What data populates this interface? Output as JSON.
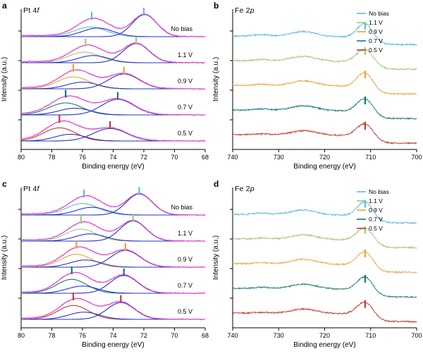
{
  "styles": {
    "background": "#ffffff",
    "axis_color": "#000000",
    "text_color": "#000000",
    "raw_color": "#d934c8",
    "envelope_color": "#f175d8",
    "fit_color": "#2433c9",
    "bias_colors": {
      "no_bias": "#5bbcdc",
      "v11": "#a6c57f",
      "v09": "#eda13c",
      "v07": "#15777c",
      "v05": "#bd3b32"
    }
  },
  "chart_data": [
    {
      "id": "a",
      "panel_letter": "a",
      "type": "line",
      "title": "Pt 4f",
      "title_prefix": "Pt 4",
      "title_italic": "f",
      "xlabel": "Binding energy (eV)",
      "ylabel": "Intensity (a.u.)",
      "x_range": [
        80,
        68
      ],
      "x_ticks": [
        80,
        78,
        76,
        74,
        72,
        70,
        68
      ],
      "spectrum": "pt4f",
      "background_tilt": 0.05,
      "raw_noise": 0.05,
      "series": [
        {
          "name": "No bias",
          "color_key": "no_bias",
          "marker_positions_eV": [
            75.4,
            72.0
          ],
          "fit_components": [
            {
              "center_eV": 75.5,
              "amplitude": 0.4,
              "sigma_eV": 1.05,
              "color": "bias"
            },
            {
              "center_eV": 75.0,
              "amplitude": 0.36,
              "sigma_eV": 1.0,
              "color": "blue"
            },
            {
              "center_eV": 71.95,
              "amplitude": 0.92,
              "sigma_eV": 0.8,
              "color": "blue"
            }
          ]
        },
        {
          "name": "1.1 V",
          "color_key": "v11",
          "marker_positions_eV": [
            75.8,
            72.5
          ],
          "fit_components": [
            {
              "center_eV": 75.9,
              "amplitude": 0.44,
              "sigma_eV": 1.05,
              "color": "bias"
            },
            {
              "center_eV": 75.3,
              "amplitude": 0.3,
              "sigma_eV": 1.0,
              "color": "blue"
            },
            {
              "center_eV": 72.5,
              "amplitude": 0.8,
              "sigma_eV": 0.85,
              "color": "blue"
            }
          ]
        },
        {
          "name": "0.9 V",
          "color_key": "v09",
          "marker_positions_eV": [
            76.6,
            73.3
          ],
          "fit_components": [
            {
              "center_eV": 76.6,
              "amplitude": 0.5,
              "sigma_eV": 1.05,
              "color": "bias"
            },
            {
              "center_eV": 76.0,
              "amplitude": 0.28,
              "sigma_eV": 1.0,
              "color": "blue"
            },
            {
              "center_eV": 73.3,
              "amplitude": 0.62,
              "sigma_eV": 1.0,
              "color": "blue"
            }
          ]
        },
        {
          "name": "0.7 V",
          "color_key": "v07",
          "marker_positions_eV": [
            77.1,
            73.7
          ],
          "fit_components": [
            {
              "center_eV": 77.1,
              "amplitude": 0.5,
              "sigma_eV": 1.1,
              "color": "bias"
            },
            {
              "center_eV": 76.5,
              "amplitude": 0.28,
              "sigma_eV": 1.05,
              "color": "blue"
            },
            {
              "center_eV": 73.7,
              "amplitude": 0.65,
              "sigma_eV": 1.05,
              "color": "blue"
            }
          ]
        },
        {
          "name": "0.5 V",
          "color_key": "v05",
          "marker_positions_eV": [
            77.5,
            74.2
          ],
          "fit_components": [
            {
              "center_eV": 77.5,
              "amplitude": 0.55,
              "sigma_eV": 1.05,
              "color": "bias"
            },
            {
              "center_eV": 76.8,
              "amplitude": 0.28,
              "sigma_eV": 1.0,
              "color": "blue"
            },
            {
              "center_eV": 74.2,
              "amplitude": 0.52,
              "sigma_eV": 1.1,
              "color": "blue"
            }
          ]
        }
      ]
    },
    {
      "id": "b",
      "panel_letter": "b",
      "type": "line",
      "title": "Fe 2p",
      "title_prefix": "Fe 2",
      "title_italic": "p",
      "xlabel": "Binding energy (eV)",
      "ylabel": "Intensity (a.u.)",
      "x_range": [
        740,
        700
      ],
      "x_ticks": [
        740,
        730,
        720,
        710,
        700
      ],
      "spectrum": "fe2p",
      "legend": {
        "position": "top-right",
        "labels": [
          "No bias",
          "1.1 V",
          "0.9 V",
          "0.7 V",
          "0.5 V"
        ],
        "color_keys": [
          "no_bias",
          "v11",
          "v09",
          "v07",
          "v05"
        ]
      },
      "series": [
        {
          "name": "No bias",
          "color_key": "no_bias",
          "marker_eV": 711.2,
          "features": {
            "base_offset": 0.02,
            "main_peak_eV": 711.2,
            "main_amp": 0.55,
            "main_sigma_eV": 1.7,
            "satellite_eV": 724.6,
            "sat_amp": 0.17,
            "sat_sigma_eV": 2.6,
            "shoulder_eV": 733.8,
            "shoulder_amp": 0.05,
            "shoulder_sigma_eV": 1.6,
            "step_eV": 709.4,
            "step_amp": 0.24,
            "step_width_eV": 1.0,
            "plateau_amp": 0.08,
            "plateau_center_eV": 715,
            "plateau_width_eV": 3,
            "noise": 0.055
          }
        },
        {
          "name": "1.1 V",
          "color_key": "v11",
          "marker_eV": 711.2,
          "features": {
            "base_offset": 0.02,
            "main_peak_eV": 711.2,
            "main_amp": 0.52,
            "main_sigma_eV": 1.8,
            "satellite_eV": 724.6,
            "sat_amp": 0.16,
            "sat_sigma_eV": 2.7,
            "shoulder_eV": 733.8,
            "shoulder_amp": 0.04,
            "shoulder_sigma_eV": 1.6,
            "step_eV": 709.4,
            "step_amp": 0.24,
            "step_width_eV": 1.0,
            "plateau_amp": 0.08,
            "plateau_center_eV": 715,
            "plateau_width_eV": 3,
            "noise": 0.06
          }
        },
        {
          "name": "0.9 V",
          "color_key": "v09",
          "marker_eV": 711.2,
          "features": {
            "base_offset": 0.02,
            "main_peak_eV": 711.2,
            "main_amp": 0.56,
            "main_sigma_eV": 1.7,
            "satellite_eV": 724.5,
            "sat_amp": 0.17,
            "sat_sigma_eV": 2.6,
            "shoulder_eV": 733.8,
            "shoulder_amp": 0.04,
            "shoulder_sigma_eV": 1.6,
            "step_eV": 709.4,
            "step_amp": 0.25,
            "step_width_eV": 1.0,
            "plateau_amp": 0.07,
            "plateau_center_eV": 715,
            "plateau_width_eV": 3,
            "noise": 0.05
          }
        },
        {
          "name": "0.7 V",
          "color_key": "v07",
          "marker_eV": 711.2,
          "features": {
            "base_offset": 0.02,
            "main_peak_eV": 711.2,
            "main_amp": 0.52,
            "main_sigma_eV": 1.7,
            "satellite_eV": 724.5,
            "sat_amp": 0.16,
            "sat_sigma_eV": 2.6,
            "shoulder_eV": 733.8,
            "shoulder_amp": 0.04,
            "shoulder_sigma_eV": 1.6,
            "step_eV": 709.4,
            "step_amp": 0.24,
            "step_width_eV": 1.0,
            "plateau_amp": 0.08,
            "plateau_center_eV": 715,
            "plateau_width_eV": 3,
            "noise": 0.05
          }
        },
        {
          "name": "0.5 V",
          "color_key": "v05",
          "marker_eV": 711.2,
          "features": {
            "base_offset": 0.02,
            "main_peak_eV": 711.2,
            "main_amp": 0.5,
            "main_sigma_eV": 1.8,
            "satellite_eV": 724.5,
            "sat_amp": 0.15,
            "sat_sigma_eV": 2.7,
            "shoulder_eV": 733.8,
            "shoulder_amp": 0.03,
            "shoulder_sigma_eV": 1.6,
            "step_eV": 709.4,
            "step_amp": 0.24,
            "step_width_eV": 1.0,
            "plateau_amp": 0.08,
            "plateau_center_eV": 715,
            "plateau_width_eV": 3,
            "noise": 0.055
          }
        }
      ]
    },
    {
      "id": "c",
      "panel_letter": "c",
      "type": "line",
      "title": "Pt 4f",
      "title_prefix": "Pt 4",
      "title_italic": "f",
      "xlabel": "Binding energy (eV)",
      "ylabel": "Intensity (a.u.)",
      "x_range": [
        80,
        68
      ],
      "x_ticks": [
        80,
        78,
        76,
        74,
        72,
        70,
        68
      ],
      "spectrum": "pt4f",
      "background_tilt": 0.05,
      "raw_noise": 0.05,
      "series": [
        {
          "name": "No bias",
          "color_key": "no_bias",
          "marker_positions_eV": [
            75.9,
            72.3
          ],
          "fit_components": [
            {
              "center_eV": 76.0,
              "amplitude": 0.48,
              "sigma_eV": 1.05,
              "color": "bias"
            },
            {
              "center_eV": 75.4,
              "amplitude": 0.32,
              "sigma_eV": 1.0,
              "color": "blue"
            },
            {
              "center_eV": 72.3,
              "amplitude": 0.88,
              "sigma_eV": 0.85,
              "color": "blue"
            }
          ]
        },
        {
          "name": "1.1 V",
          "color_key": "v11",
          "marker_positions_eV": [
            76.1,
            72.7
          ],
          "fit_components": [
            {
              "center_eV": 76.1,
              "amplitude": 0.5,
              "sigma_eV": 1.0,
              "color": "bias"
            },
            {
              "center_eV": 75.5,
              "amplitude": 0.3,
              "sigma_eV": 1.0,
              "color": "blue"
            },
            {
              "center_eV": 72.7,
              "amplitude": 0.84,
              "sigma_eV": 0.85,
              "color": "blue"
            }
          ]
        },
        {
          "name": "0.9 V",
          "color_key": "v09",
          "marker_positions_eV": [
            76.4,
            73.2
          ],
          "fit_components": [
            {
              "center_eV": 76.4,
              "amplitude": 0.54,
              "sigma_eV": 1.0,
              "color": "bias"
            },
            {
              "center_eV": 75.8,
              "amplitude": 0.3,
              "sigma_eV": 1.0,
              "color": "blue"
            },
            {
              "center_eV": 73.2,
              "amplitude": 0.7,
              "sigma_eV": 0.95,
              "color": "blue"
            }
          ]
        },
        {
          "name": "0.7 V",
          "color_key": "v07",
          "marker_positions_eV": [
            76.7,
            73.3
          ],
          "fit_components": [
            {
              "center_eV": 76.7,
              "amplitude": 0.58,
              "sigma_eV": 1.0,
              "color": "bias"
            },
            {
              "center_eV": 76.0,
              "amplitude": 0.3,
              "sigma_eV": 1.0,
              "color": "blue"
            },
            {
              "center_eV": 73.3,
              "amplitude": 0.74,
              "sigma_eV": 0.9,
              "color": "blue"
            }
          ]
        },
        {
          "name": "0.5 V",
          "color_key": "v05",
          "marker_positions_eV": [
            76.6,
            73.5
          ],
          "fit_components": [
            {
              "center_eV": 76.6,
              "amplitude": 0.58,
              "sigma_eV": 1.0,
              "color": "bias"
            },
            {
              "center_eV": 75.9,
              "amplitude": 0.3,
              "sigma_eV": 1.0,
              "color": "blue"
            },
            {
              "center_eV": 73.5,
              "amplitude": 0.7,
              "sigma_eV": 0.9,
              "color": "blue"
            }
          ]
        }
      ]
    },
    {
      "id": "d",
      "panel_letter": "d",
      "type": "line",
      "title": "Fe 2p",
      "title_prefix": "Fe 2",
      "title_italic": "p",
      "xlabel": "Binding energy (eV)",
      "ylabel": "Intensity (a.u.)",
      "x_range": [
        740,
        700
      ],
      "x_ticks": [
        740,
        730,
        720,
        710,
        700
      ],
      "spectrum": "fe2p",
      "legend": {
        "position": "top-right",
        "labels": [
          "No bias",
          "1.1 V",
          "0.9 V",
          "0.7 V",
          "0.5 V"
        ],
        "color_keys": [
          "no_bias",
          "v11",
          "v09",
          "v07",
          "v05"
        ]
      },
      "series": [
        {
          "name": "No bias",
          "color_key": "no_bias",
          "marker_eV": 711.2,
          "features": {
            "base_offset": 0.02,
            "main_peak_eV": 711.2,
            "main_amp": 0.56,
            "main_sigma_eV": 1.7,
            "satellite_eV": 724.6,
            "sat_amp": 0.17,
            "sat_sigma_eV": 2.6,
            "shoulder_eV": 733.8,
            "shoulder_amp": 0.05,
            "shoulder_sigma_eV": 1.6,
            "step_eV": 709.4,
            "step_amp": 0.24,
            "step_width_eV": 1.0,
            "plateau_amp": 0.08,
            "plateau_center_eV": 715,
            "plateau_width_eV": 3,
            "noise": 0.06
          }
        },
        {
          "name": "1.1 V",
          "color_key": "v11",
          "marker_eV": 711.2,
          "features": {
            "base_offset": 0.02,
            "main_peak_eV": 711.2,
            "main_amp": 0.5,
            "main_sigma_eV": 1.8,
            "satellite_eV": 724.6,
            "sat_amp": 0.16,
            "sat_sigma_eV": 2.7,
            "shoulder_eV": 733.8,
            "shoulder_amp": 0.04,
            "shoulder_sigma_eV": 1.6,
            "step_eV": 709.4,
            "step_amp": 0.24,
            "step_width_eV": 1.0,
            "plateau_amp": 0.08,
            "plateau_center_eV": 715,
            "plateau_width_eV": 3,
            "noise": 0.06
          }
        },
        {
          "name": "0.9 V",
          "color_key": "v09",
          "marker_eV": 711.2,
          "features": {
            "base_offset": 0.02,
            "main_peak_eV": 711.2,
            "main_amp": 0.54,
            "main_sigma_eV": 1.7,
            "satellite_eV": 724.5,
            "sat_amp": 0.17,
            "sat_sigma_eV": 2.6,
            "shoulder_eV": 733.8,
            "shoulder_amp": 0.04,
            "shoulder_sigma_eV": 1.6,
            "step_eV": 709.4,
            "step_amp": 0.25,
            "step_width_eV": 1.0,
            "plateau_amp": 0.07,
            "plateau_center_eV": 715,
            "plateau_width_eV": 3,
            "noise": 0.05
          }
        },
        {
          "name": "0.7 V",
          "color_key": "v07",
          "marker_eV": 711.2,
          "features": {
            "base_offset": 0.02,
            "main_peak_eV": 711.2,
            "main_amp": 0.52,
            "main_sigma_eV": 1.7,
            "satellite_eV": 724.5,
            "sat_amp": 0.16,
            "sat_sigma_eV": 2.6,
            "shoulder_eV": 733.8,
            "shoulder_amp": 0.04,
            "shoulder_sigma_eV": 1.6,
            "step_eV": 709.4,
            "step_amp": 0.24,
            "step_width_eV": 1.0,
            "plateau_amp": 0.08,
            "plateau_center_eV": 715,
            "plateau_width_eV": 3,
            "noise": 0.05
          }
        },
        {
          "name": "0.5 V",
          "color_key": "v05",
          "marker_eV": 711.2,
          "features": {
            "base_offset": 0.02,
            "main_peak_eV": 711.2,
            "main_amp": 0.5,
            "main_sigma_eV": 1.8,
            "satellite_eV": 724.5,
            "sat_amp": 0.15,
            "sat_sigma_eV": 2.7,
            "shoulder_eV": 733.8,
            "shoulder_amp": 0.03,
            "shoulder_sigma_eV": 1.6,
            "step_eV": 709.4,
            "step_amp": 0.24,
            "step_width_eV": 1.0,
            "plateau_amp": 0.08,
            "plateau_center_eV": 715,
            "plateau_width_eV": 3,
            "noise": 0.055
          }
        }
      ]
    }
  ]
}
